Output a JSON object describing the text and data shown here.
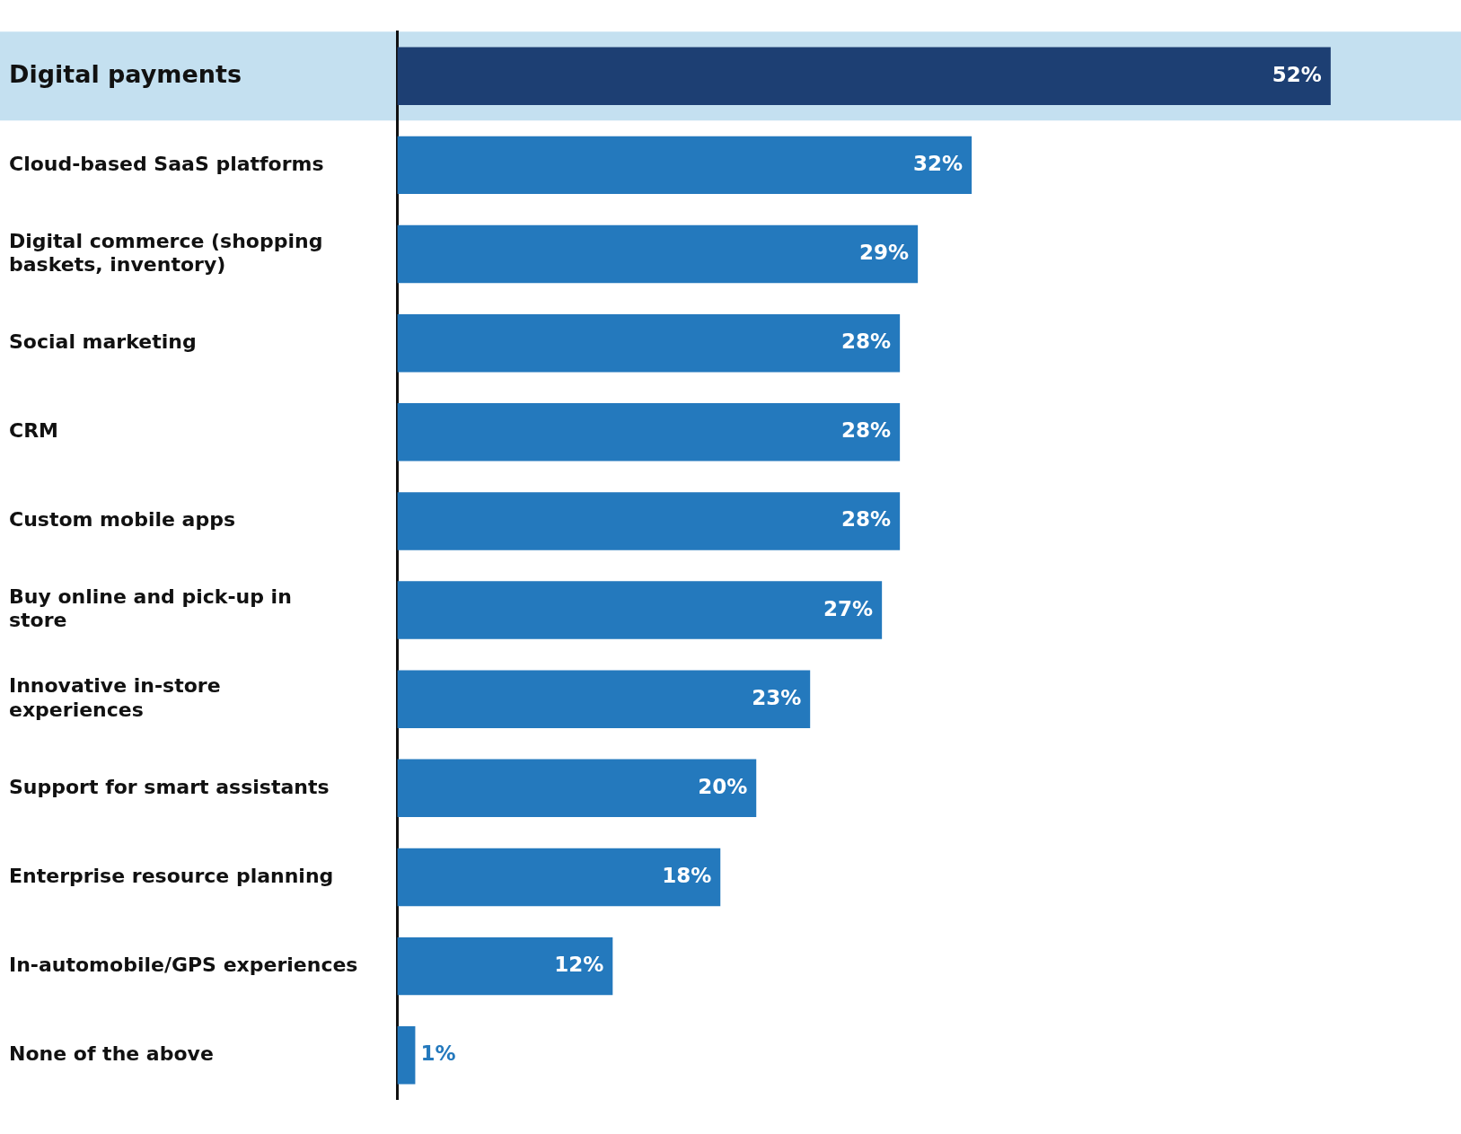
{
  "chart_data": {
    "type": "bar",
    "orientation": "horizontal",
    "categories": [
      "Digital payments",
      "Cloud-based SaaS platforms",
      "Digital commerce (shopping baskets, inventory)",
      "Social marketing",
      "CRM",
      "Custom mobile apps",
      "Buy online and pick-up in store",
      "Innovative in-store experiences",
      "Support for smart assistants",
      "Enterprise resource planning",
      "In-automobile/GPS experiences",
      "None of the above"
    ],
    "values": [
      52,
      32,
      29,
      28,
      28,
      28,
      27,
      23,
      20,
      18,
      12,
      1
    ],
    "value_labels": [
      "52%",
      "32%",
      "29%",
      "28%",
      "28%",
      "28%",
      "27%",
      "23%",
      "20%",
      "18%",
      "12%",
      "1%"
    ],
    "colors": [
      "#1d3f73",
      "#2479bd",
      "#2479bd",
      "#2479bd",
      "#2479bd",
      "#2479bd",
      "#2479bd",
      "#2479bd",
      "#2479bd",
      "#2479bd",
      "#2479bd",
      "#2479bd"
    ],
    "bands": [
      {
        "axis": "y",
        "from": "Digital payments",
        "to": "Digital payments",
        "color": "#c4e0f0"
      }
    ],
    "grid": false,
    "legend": false
  }
}
